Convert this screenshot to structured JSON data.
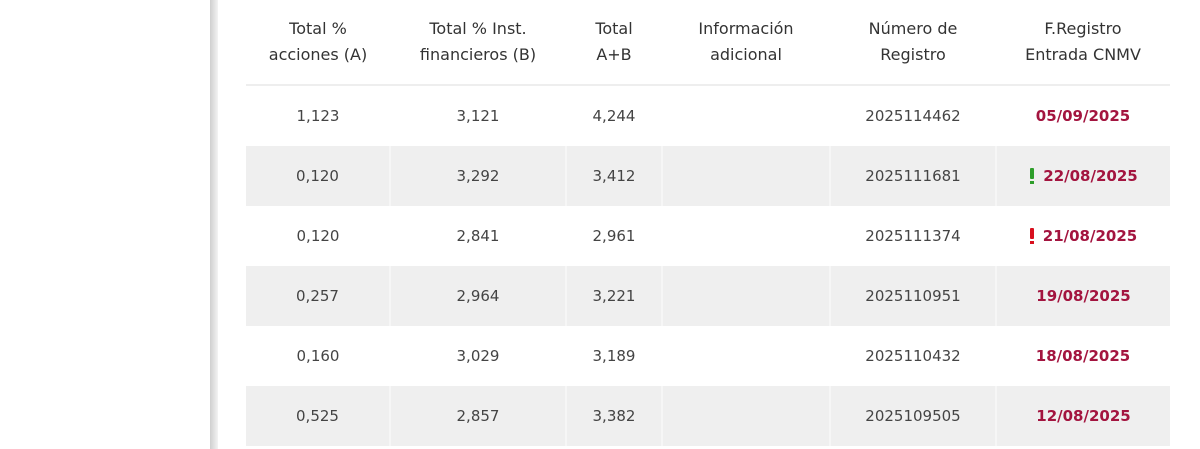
{
  "table": {
    "headers": [
      "Total %\nacciones (A)",
      "Total % Inst.\nfinancieros (B)",
      "Total\nA+B",
      "Información\nadicional",
      "Número de\nRegistro",
      "F.Registro\nEntrada CNMV"
    ],
    "rows": [
      {
        "a": "1,123",
        "b": "3,121",
        "ab": "4,244",
        "registro": "2025114462",
        "fecha": "05/09/2025"
      },
      {
        "a": "0,120",
        "b": "3,292",
        "ab": "3,412",
        "registro": "2025111681",
        "fecha": "22/08/2025",
        "flag_color": "#2e9e2a"
      },
      {
        "a": "0,120",
        "b": "2,841",
        "ab": "2,961",
        "registro": "2025111374",
        "fecha": "21/08/2025",
        "flag_color": "#d8101e"
      },
      {
        "a": "0,257",
        "b": "2,964",
        "ab": "3,221",
        "registro": "2025110951",
        "fecha": "19/08/2025"
      },
      {
        "a": "0,160",
        "b": "3,029",
        "ab": "3,189",
        "registro": "2025110432",
        "fecha": "18/08/2025"
      },
      {
        "a": "0,525",
        "b": "2,857",
        "ab": "3,382",
        "registro": "2025109505",
        "fecha": "12/08/2025"
      }
    ]
  }
}
